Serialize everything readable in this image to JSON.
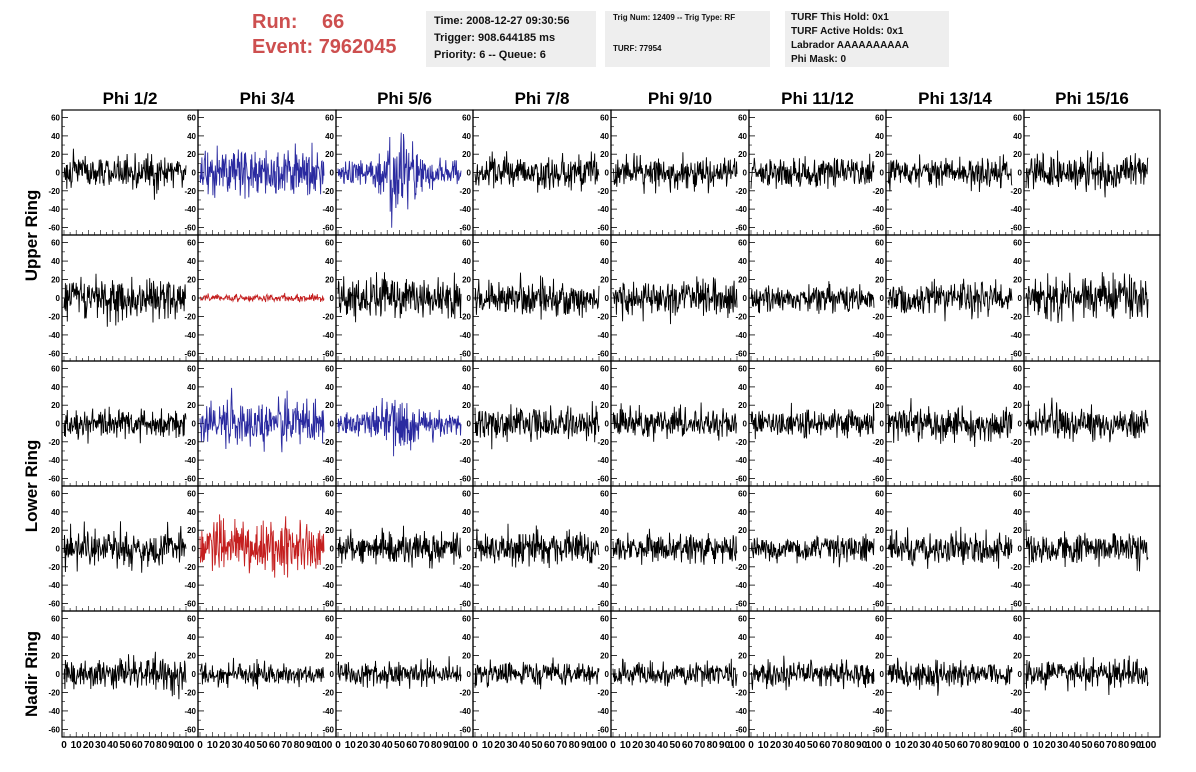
{
  "header": {
    "run_label": "Run:",
    "run_value": "66",
    "event_label": "Event:",
    "event_value": "7962045",
    "info_time": "Time: 2008-12-27 09:30:56",
    "info_trigger": "Trigger: 908.644185 ms",
    "info_priority": "Priority: 6 -- Queue: 6",
    "trig_line": "Trig Num: 12409 -- Trig Type: RF",
    "turf_line": "TURF: 77954",
    "turf_hold": "TURF This Hold: 0x1",
    "turf_active": "TURF Active Holds: 0x1",
    "labrador": "Labrador AAAAAAAAAA",
    "phi_mask": "Phi Mask: 0"
  },
  "colors": {
    "header_text": "#cd4f4f",
    "info_bg": "#eeeeee",
    "trace_default": "#000000",
    "trace_blue": "#2a2aa0",
    "trace_red": "#c41f1f"
  },
  "chart_data": {
    "type": "line",
    "columns": [
      "Phi 1/2",
      "Phi 3/4",
      "Phi 5/6",
      "Phi 7/8",
      "Phi 9/10",
      "Phi 11/12",
      "Phi 13/14",
      "Phi 15/16"
    ],
    "rows": [
      "Upper Ring",
      "Upper Ring",
      "Lower Ring",
      "Lower Ring",
      "Nadir Ring"
    ],
    "row_labels": [
      "Upper Ring",
      "Lower Ring",
      "Nadir Ring"
    ],
    "ylim": [
      -65,
      65
    ],
    "yticks": [
      -60,
      -40,
      -20,
      0,
      20,
      40,
      60
    ],
    "xlim": [
      0,
      100
    ],
    "xtick_labels": [
      "0",
      "10",
      "20",
      "30",
      "40",
      "50",
      "60",
      "70",
      "80",
      "90",
      "100"
    ],
    "trace_amplitude": [
      [
        14,
        20,
        28,
        14,
        14,
        12,
        13,
        14
      ],
      [
        17,
        3,
        17,
        15,
        14,
        11,
        14,
        17
      ],
      [
        12,
        20,
        26,
        14,
        12,
        12,
        14,
        13
      ],
      [
        16,
        22,
        14,
        14,
        12,
        11,
        13,
        15
      ],
      [
        13,
        10,
        10,
        10,
        10,
        11,
        11,
        12
      ]
    ],
    "trace_color": [
      [
        "default",
        "blue",
        "blue",
        "default",
        "default",
        "default",
        "default",
        "default"
      ],
      [
        "default",
        "red",
        "default",
        "default",
        "default",
        "default",
        "default",
        "default"
      ],
      [
        "default",
        "blue",
        "blue",
        "default",
        "default",
        "default",
        "default",
        "default"
      ],
      [
        "default",
        "red",
        "default",
        "default",
        "default",
        "default",
        "default",
        "default"
      ],
      [
        "default",
        "default",
        "default",
        "default",
        "default",
        "default",
        "default",
        "default"
      ]
    ]
  }
}
